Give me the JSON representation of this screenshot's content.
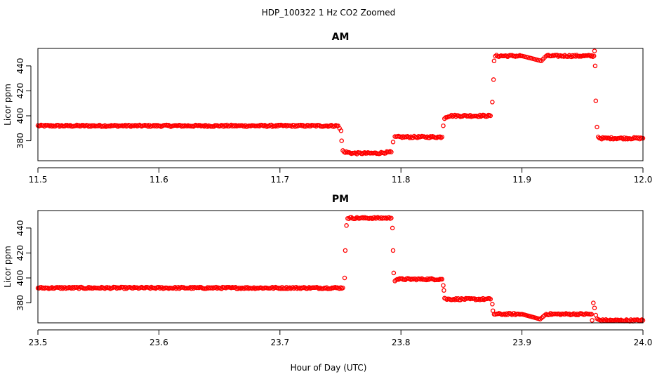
{
  "figure_title": "HDP_100322  1 Hz CO2 Zoomed",
  "xlabel": "Hour of Day (UTC)",
  "colors": {
    "points": "#ff0000"
  },
  "chart_data": [
    {
      "type": "scatter",
      "title": "AM",
      "ylabel": "Licor ppm",
      "xlim": [
        11.5,
        12.0
      ],
      "ylim": [
        364,
        454
      ],
      "xticks": [
        11.5,
        11.6,
        11.7,
        11.8,
        11.9,
        12.0
      ],
      "xtick_labels": [
        "11.5",
        "11.6",
        "11.7",
        "11.8",
        "11.9",
        "12.0"
      ],
      "yticks": [
        380,
        400,
        420,
        440
      ],
      "ytick_labels": [
        "380",
        "400",
        "420",
        "440"
      ],
      "grid": false,
      "legend": "none",
      "series": [
        {
          "x": [
            11.5,
            11.55,
            11.6,
            11.65,
            11.7,
            11.748,
            11.7505,
            11.751,
            11.752,
            11.753,
            11.754,
            11.76,
            11.77,
            11.78,
            11.792,
            11.7935,
            11.795,
            11.796,
            11.8,
            11.81,
            11.82,
            11.834,
            11.835,
            11.836,
            11.837,
            11.84,
            11.85,
            11.86,
            11.874,
            11.8755,
            11.8765,
            11.877,
            11.878,
            11.88,
            11.9,
            11.916,
            11.92,
            11.94,
            11.9595,
            11.96,
            11.9605,
            11.961,
            11.962,
            11.963,
            11.965,
            11.98,
            12.0
          ],
          "y": [
            392,
            392,
            392,
            392,
            392,
            392,
            388,
            380,
            372,
            371,
            371,
            370,
            370,
            370,
            371,
            379,
            383,
            383,
            383,
            383,
            383,
            383,
            392,
            398,
            399,
            400,
            400,
            400,
            400,
            411,
            429,
            444,
            448,
            448,
            448,
            444,
            448,
            448,
            448,
            452,
            440,
            412,
            391,
            383,
            382,
            382,
            382
          ]
        }
      ]
    },
    {
      "type": "scatter",
      "title": "PM",
      "ylabel": "Licor ppm",
      "xlim": [
        23.5,
        24.0
      ],
      "ylim": [
        364,
        454
      ],
      "xticks": [
        23.5,
        23.6,
        23.7,
        23.8,
        23.9,
        24.0
      ],
      "xtick_labels": [
        "23.5",
        "23.6",
        "23.7",
        "23.8",
        "23.9",
        "24.0"
      ],
      "yticks": [
        380,
        400,
        420,
        440
      ],
      "ytick_labels": [
        "380",
        "400",
        "420",
        "440"
      ],
      "grid": false,
      "legend": "none",
      "series": [
        {
          "x": [
            23.5,
            23.55,
            23.6,
            23.65,
            23.7,
            23.752,
            23.7535,
            23.754,
            23.755,
            23.756,
            23.76,
            23.77,
            23.78,
            23.792,
            23.793,
            23.7935,
            23.794,
            23.795,
            23.796,
            23.8,
            23.81,
            23.82,
            23.834,
            23.835,
            23.8355,
            23.836,
            23.837,
            23.84,
            23.85,
            23.86,
            23.874,
            23.8755,
            23.876,
            23.877,
            23.88,
            23.9,
            23.915,
            23.92,
            23.94,
            23.9575,
            23.958,
            23.959,
            23.96,
            23.961,
            23.962,
            23.965,
            23.98,
            24.0
          ],
          "y": [
            392,
            392,
            392,
            392,
            392,
            392,
            400,
            422,
            442,
            448,
            448,
            448,
            448,
            448,
            440,
            422,
            404,
            398,
            399,
            399,
            399,
            399,
            399,
            394,
            390,
            384,
            383,
            383,
            383,
            383,
            383,
            379,
            374,
            371,
            371,
            371,
            367,
            371,
            371,
            371,
            366,
            380,
            376,
            370,
            367,
            366,
            366,
            366
          ]
        }
      ]
    }
  ]
}
